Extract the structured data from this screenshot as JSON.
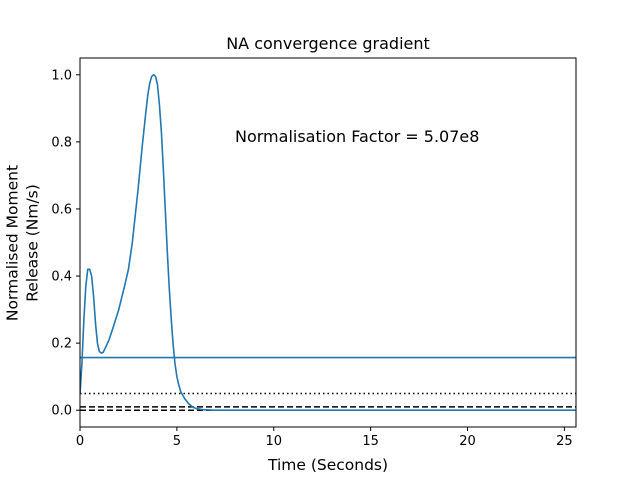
{
  "chart_data": {
    "type": "line",
    "title": "NA convergence gradient",
    "xlabel": "Time (Seconds)",
    "ylabel_lines": [
      "Normalised Moment",
      "Release (Nm/s)"
    ],
    "xlim": [
      0,
      25.6
    ],
    "ylim": [
      -0.05,
      1.05
    ],
    "xticks": [
      0,
      5,
      10,
      15,
      20,
      25
    ],
    "yticks": [
      0.0,
      0.2,
      0.4,
      0.6,
      0.8,
      1.0
    ],
    "xtick_labels": [
      "0",
      "5",
      "10",
      "15",
      "20",
      "25"
    ],
    "ytick_labels": [
      "0.0",
      "0.2",
      "0.4",
      "0.6",
      "0.8",
      "1.0"
    ],
    "annotation": "Normalisation Factor = 5.07e8",
    "grid": false,
    "series": [
      {
        "color": "#1f77b4",
        "style": "solid",
        "x": [
          0,
          0.1,
          0.2,
          0.3,
          0.4,
          0.5,
          0.6,
          0.7,
          0.8,
          0.9,
          1.0,
          1.1,
          1.2,
          1.3,
          1.5,
          1.7,
          2.0,
          2.3,
          2.5,
          2.7,
          3.0,
          3.2,
          3.4,
          3.5,
          3.6,
          3.7,
          3.8,
          3.9,
          4.0,
          4.1,
          4.2,
          4.3,
          4.4,
          4.5,
          4.6,
          4.7,
          4.8,
          4.9,
          5.0,
          5.1,
          5.2,
          5.4,
          5.6,
          5.8,
          6.0,
          6.3,
          6.6,
          7.0,
          8.0,
          10.0,
          15.0,
          20.0,
          25.6
        ],
        "y": [
          0.05,
          0.14,
          0.27,
          0.37,
          0.42,
          0.42,
          0.4,
          0.34,
          0.26,
          0.2,
          0.175,
          0.17,
          0.173,
          0.185,
          0.21,
          0.245,
          0.3,
          0.37,
          0.42,
          0.5,
          0.66,
          0.78,
          0.89,
          0.94,
          0.975,
          0.995,
          1.0,
          0.995,
          0.97,
          0.91,
          0.83,
          0.72,
          0.6,
          0.48,
          0.37,
          0.28,
          0.2,
          0.14,
          0.1,
          0.075,
          0.055,
          0.035,
          0.02,
          0.01,
          0.005,
          0.002,
          0.001,
          0.0,
          0.0,
          0.0,
          0.0,
          0.0,
          0.0
        ]
      },
      {
        "color": "#1f77b4",
        "style": "solid",
        "x": [
          0,
          25.6
        ],
        "y": [
          0.157,
          0.157
        ]
      }
    ],
    "reference_lines": [
      {
        "y": 0.05,
        "style": "dotted",
        "color": "#000000"
      },
      {
        "y": 0.01,
        "style": "dashed",
        "color": "#000000"
      },
      {
        "y": 0.0,
        "style": "dashed",
        "color": "#000000"
      }
    ]
  }
}
